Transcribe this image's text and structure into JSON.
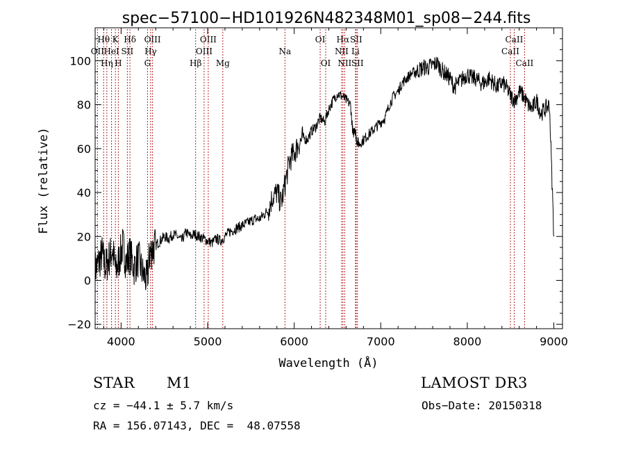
{
  "chart_data": {
    "type": "line",
    "title": "spec−57100−HD101926N482348M01_sp08−244.fits",
    "xlabel": "Wavelength (Å)",
    "ylabel": "Flux (relative)",
    "xlim": [
      3700,
      9100
    ],
    "ylim": [
      -22,
      115
    ],
    "xticks": [
      4000,
      5000,
      6000,
      7000,
      8000,
      9000
    ],
    "yticks": [
      -20,
      0,
      20,
      40,
      60,
      80,
      100
    ],
    "xtick_labels": [
      "4000",
      "5000",
      "6000",
      "7000",
      "8000",
      "9000"
    ],
    "ytick_labels": [
      "−20",
      "0",
      "20",
      "40",
      "60",
      "80",
      "100"
    ],
    "grid": false,
    "legend": "none",
    "line_color": "#000000",
    "marker_color": "#b22222",
    "series": [
      {
        "x": [
          3700,
          3740,
          3780,
          3820,
          3860,
          3900,
          3940,
          3980,
          4020,
          4060,
          4100,
          4150,
          4200,
          4250,
          4300,
          4330,
          4360,
          4400,
          4450,
          4500,
          4550,
          4600,
          4650,
          4700,
          4750,
          4800,
          4850,
          4900,
          4950,
          5000,
          5050,
          5100,
          5150,
          5200,
          5250,
          5300,
          5350,
          5400,
          5450,
          5500,
          5550,
          5600,
          5650,
          5700,
          5750,
          5800,
          5850,
          5900,
          5950,
          6000,
          6050,
          6100,
          6150,
          6200,
          6250,
          6300,
          6350,
          6400,
          6450,
          6500,
          6550,
          6600,
          6650,
          6680,
          6700,
          6720,
          6750,
          6800,
          6850,
          6900,
          6950,
          7000,
          7050,
          7100,
          7150,
          7200,
          7250,
          7300,
          7350,
          7400,
          7450,
          7500,
          7550,
          7600,
          7650,
          7700,
          7750,
          7800,
          7850,
          7900,
          7950,
          8000,
          8050,
          8100,
          8150,
          8200,
          8250,
          8300,
          8350,
          8400,
          8450,
          8500,
          8550,
          8600,
          8650,
          8700,
          8750,
          8800,
          8850,
          8900,
          8950,
          9000
        ],
        "y": [
          5,
          8,
          12,
          6,
          10,
          14,
          4,
          10,
          16,
          8,
          12,
          6,
          10,
          3,
          0,
          12,
          14,
          16,
          18,
          20,
          19,
          21,
          20,
          18,
          22,
          20,
          21,
          20,
          19,
          18,
          17,
          19,
          18,
          20,
          22,
          23,
          24,
          25,
          26,
          27,
          28,
          28,
          30,
          32,
          38,
          40,
          35,
          45,
          55,
          58,
          62,
          65,
          64,
          68,
          70,
          74,
          72,
          78,
          82,
          85,
          84,
          82,
          80,
          66,
          70,
          64,
          62,
          64,
          66,
          68,
          70,
          72,
          74,
          80,
          84,
          86,
          90,
          92,
          94,
          95,
          96,
          97,
          97,
          98,
          99,
          96,
          94,
          92,
          88,
          90,
          92,
          94,
          92,
          92,
          90,
          90,
          92,
          90,
          88,
          90,
          88,
          84,
          82,
          86,
          84,
          80,
          78,
          82,
          76,
          78,
          80,
          20
        ]
      }
    ],
    "lines": [
      {
        "label": "Hθ",
        "x": 3798,
        "row": 0
      },
      {
        "label": "OII",
        "x": 3727,
        "row": 1
      },
      {
        "label": "Hη",
        "x": 3835,
        "row": 2
      },
      {
        "label": "K",
        "x": 3934,
        "row": 0
      },
      {
        "label": "HeI",
        "x": 3889,
        "row": 1
      },
      {
        "label": "H",
        "x": 3968,
        "row": 2
      },
      {
        "label": "Hδ",
        "x": 4102,
        "row": 0
      },
      {
        "label": "SII",
        "x": 4072,
        "row": 1
      },
      {
        "label": "OIII",
        "x": 4363,
        "row": 0
      },
      {
        "label": "Hγ",
        "x": 4341,
        "row": 1
      },
      {
        "label": "G",
        "x": 4305,
        "row": 2
      },
      {
        "label": "Hβ",
        "x": 4861,
        "row": 2
      },
      {
        "label": "OIII",
        "x": 5007,
        "row": 0
      },
      {
        "label": "OIII",
        "x": 4959,
        "row": 1
      },
      {
        "label": "Mg",
        "x": 5175,
        "row": 2
      },
      {
        "label": "Na",
        "x": 5893,
        "row": 1
      },
      {
        "label": "OI",
        "x": 6300,
        "row": 0
      },
      {
        "label": "OI",
        "x": 6364,
        "row": 2
      },
      {
        "label": "Hα",
        "x": 6563,
        "row": 0
      },
      {
        "label": "NII",
        "x": 6548,
        "row": 1
      },
      {
        "label": "NII",
        "x": 6583,
        "row": 2
      },
      {
        "label": "SII",
        "x": 6716,
        "row": 0
      },
      {
        "label": "Li",
        "x": 6708,
        "row": 1
      },
      {
        "label": "SII",
        "x": 6731,
        "row": 2
      },
      {
        "label": "CaII",
        "x": 8542,
        "row": 0
      },
      {
        "label": "CaII",
        "x": 8498,
        "row": 1
      },
      {
        "label": "CaII",
        "x": 8662,
        "row": 2
      }
    ]
  },
  "info": {
    "object_type": "STAR",
    "subclass": "M1",
    "survey": "LAMOST DR3",
    "cz": "cz = −44.1 ± 5.7 km/s",
    "obs_date": "Obs−Date: 20150318",
    "coords": "RA = 156.07143, DEC =  48.07558"
  }
}
